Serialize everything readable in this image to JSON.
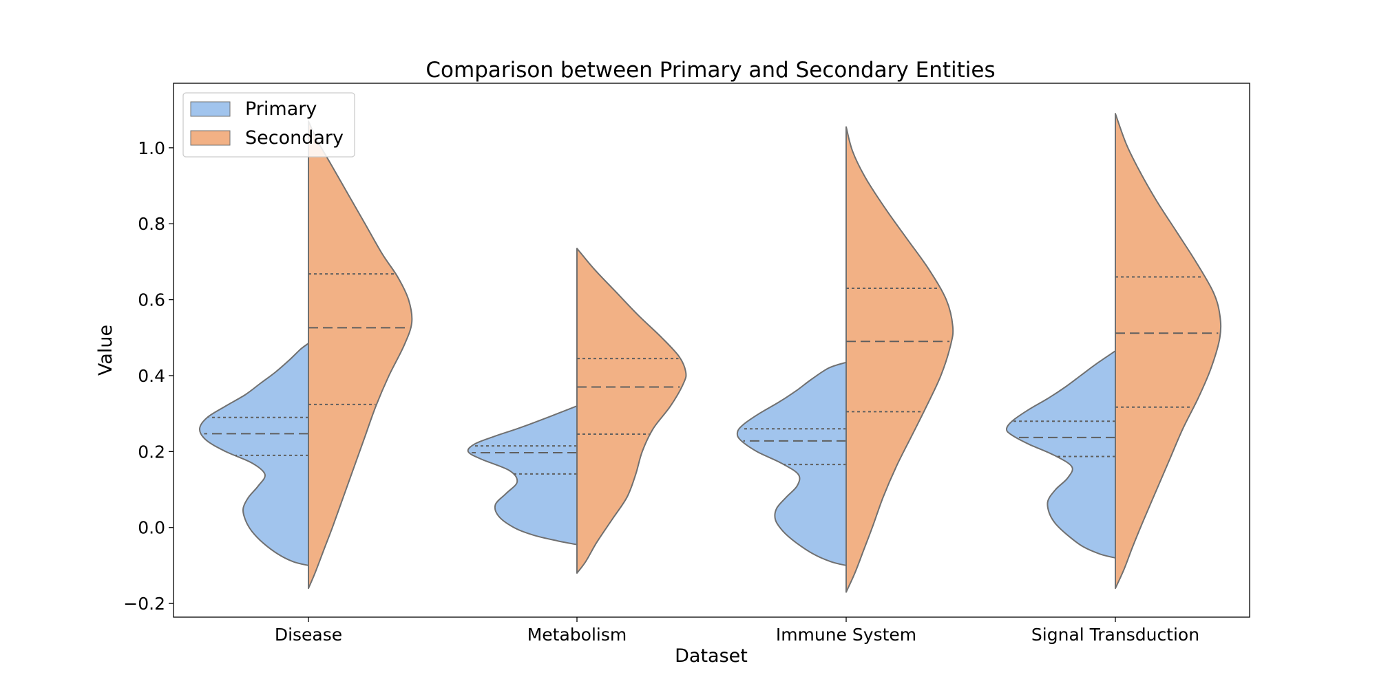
{
  "chart_data": {
    "type": "violin",
    "title": "Comparison between Primary and Secondary Entities",
    "xlabel": "Dataset",
    "ylabel": "Value",
    "categories": [
      "Disease",
      "Metabolism",
      "Immune System",
      "Signal Transduction"
    ],
    "ylim": [
      -0.236,
      1.17
    ],
    "yticks": [
      -0.2,
      0.0,
      0.2,
      0.4,
      0.6,
      0.8,
      1.0
    ],
    "yticklabels": [
      "−0.2",
      "0.0",
      "0.2",
      "0.4",
      "0.6",
      "0.8",
      "1.0"
    ],
    "legend": {
      "placement": "top-left",
      "entries": [
        {
          "label": "Primary",
          "color": "#a1c4ed"
        },
        {
          "label": "Secondary",
          "color": "#f2b185"
        }
      ]
    },
    "series": [
      {
        "name": "Primary",
        "color": "#a1c4ed",
        "side": "left",
        "violins": [
          {
            "min": -0.1,
            "max": 0.485,
            "q1": 0.19,
            "median": 0.247,
            "q3": 0.29,
            "profile": [
              [
                -0.1,
                0.0
              ],
              [
                -0.09,
                0.14
              ],
              [
                -0.07,
                0.28
              ],
              [
                -0.04,
                0.42
              ],
              [
                -0.01,
                0.52
              ],
              [
                0.02,
                0.58
              ],
              [
                0.05,
                0.6
              ],
              [
                0.08,
                0.55
              ],
              [
                0.11,
                0.46
              ],
              [
                0.14,
                0.4
              ],
              [
                0.17,
                0.52
              ],
              [
                0.2,
                0.76
              ],
              [
                0.23,
                0.94
              ],
              [
                0.26,
                1.0
              ],
              [
                0.29,
                0.93
              ],
              [
                0.32,
                0.76
              ],
              [
                0.35,
                0.58
              ],
              [
                0.38,
                0.44
              ],
              [
                0.41,
                0.3
              ],
              [
                0.44,
                0.18
              ],
              [
                0.47,
                0.07
              ],
              [
                0.485,
                0.0
              ]
            ]
          },
          {
            "min": -0.045,
            "max": 0.32,
            "q1": 0.141,
            "median": 0.197,
            "q3": 0.215,
            "profile": [
              [
                -0.045,
                0.0
              ],
              [
                -0.035,
                0.18
              ],
              [
                -0.02,
                0.4
              ],
              [
                0.0,
                0.58
              ],
              [
                0.03,
                0.72
              ],
              [
                0.06,
                0.75
              ],
              [
                0.09,
                0.65
              ],
              [
                0.12,
                0.55
              ],
              [
                0.15,
                0.62
              ],
              [
                0.18,
                0.88
              ],
              [
                0.2,
                1.0
              ],
              [
                0.22,
                0.94
              ],
              [
                0.24,
                0.76
              ],
              [
                0.26,
                0.55
              ],
              [
                0.28,
                0.36
              ],
              [
                0.3,
                0.18
              ],
              [
                0.32,
                0.0
              ]
            ]
          },
          {
            "min": -0.1,
            "max": 0.435,
            "q1": 0.166,
            "median": 0.228,
            "q3": 0.26,
            "profile": [
              [
                -0.1,
                0.0
              ],
              [
                -0.09,
                0.14
              ],
              [
                -0.07,
                0.3
              ],
              [
                -0.04,
                0.46
              ],
              [
                -0.01,
                0.58
              ],
              [
                0.02,
                0.65
              ],
              [
                0.05,
                0.64
              ],
              [
                0.08,
                0.55
              ],
              [
                0.11,
                0.45
              ],
              [
                0.14,
                0.44
              ],
              [
                0.17,
                0.6
              ],
              [
                0.2,
                0.82
              ],
              [
                0.23,
                0.97
              ],
              [
                0.25,
                1.0
              ],
              [
                0.27,
                0.95
              ],
              [
                0.3,
                0.8
              ],
              [
                0.33,
                0.62
              ],
              [
                0.36,
                0.46
              ],
              [
                0.39,
                0.32
              ],
              [
                0.42,
                0.16
              ],
              [
                0.435,
                0.0
              ]
            ]
          },
          {
            "min": -0.08,
            "max": 0.465,
            "q1": 0.187,
            "median": 0.237,
            "q3": 0.28,
            "profile": [
              [
                -0.08,
                0.0
              ],
              [
                -0.07,
                0.14
              ],
              [
                -0.05,
                0.3
              ],
              [
                -0.02,
                0.44
              ],
              [
                0.01,
                0.55
              ],
              [
                0.04,
                0.61
              ],
              [
                0.07,
                0.62
              ],
              [
                0.1,
                0.55
              ],
              [
                0.13,
                0.44
              ],
              [
                0.16,
                0.4
              ],
              [
                0.19,
                0.56
              ],
              [
                0.22,
                0.8
              ],
              [
                0.245,
                0.96
              ],
              [
                0.26,
                1.0
              ],
              [
                0.28,
                0.95
              ],
              [
                0.31,
                0.8
              ],
              [
                0.34,
                0.62
              ],
              [
                0.37,
                0.46
              ],
              [
                0.4,
                0.32
              ],
              [
                0.43,
                0.18
              ],
              [
                0.465,
                0.0
              ]
            ]
          }
        ]
      },
      {
        "name": "Secondary",
        "color": "#f2b185",
        "side": "right",
        "violins": [
          {
            "min": -0.16,
            "max": 1.07,
            "q1": 0.324,
            "median": 0.526,
            "q3": 0.668,
            "profile": [
              [
                -0.16,
                0.0
              ],
              [
                -0.12,
                0.06
              ],
              [
                -0.06,
                0.14
              ],
              [
                0.0,
                0.22
              ],
              [
                0.08,
                0.32
              ],
              [
                0.16,
                0.42
              ],
              [
                0.24,
                0.52
              ],
              [
                0.32,
                0.62
              ],
              [
                0.4,
                0.74
              ],
              [
                0.48,
                0.88
              ],
              [
                0.54,
                0.95
              ],
              [
                0.6,
                0.92
              ],
              [
                0.66,
                0.82
              ],
              [
                0.72,
                0.68
              ],
              [
                0.8,
                0.52
              ],
              [
                0.88,
                0.36
              ],
              [
                0.96,
                0.2
              ],
              [
                1.02,
                0.08
              ],
              [
                1.07,
                0.0
              ]
            ]
          },
          {
            "min": -0.12,
            "max": 0.735,
            "q1": 0.246,
            "median": 0.37,
            "q3": 0.445,
            "profile": [
              [
                -0.12,
                0.0
              ],
              [
                -0.09,
                0.08
              ],
              [
                -0.04,
                0.18
              ],
              [
                0.02,
                0.32
              ],
              [
                0.08,
                0.46
              ],
              [
                0.14,
                0.54
              ],
              [
                0.2,
                0.6
              ],
              [
                0.26,
                0.7
              ],
              [
                0.32,
                0.86
              ],
              [
                0.38,
                0.98
              ],
              [
                0.41,
                1.0
              ],
              [
                0.45,
                0.94
              ],
              [
                0.5,
                0.78
              ],
              [
                0.56,
                0.56
              ],
              [
                0.62,
                0.36
              ],
              [
                0.68,
                0.16
              ],
              [
                0.735,
                0.0
              ]
            ]
          },
          {
            "min": -0.17,
            "max": 1.055,
            "q1": 0.305,
            "median": 0.49,
            "q3": 0.63,
            "profile": [
              [
                -0.17,
                0.0
              ],
              [
                -0.12,
                0.08
              ],
              [
                -0.06,
                0.16
              ],
              [
                0.0,
                0.24
              ],
              [
                0.08,
                0.34
              ],
              [
                0.16,
                0.46
              ],
              [
                0.24,
                0.6
              ],
              [
                0.32,
                0.74
              ],
              [
                0.4,
                0.87
              ],
              [
                0.48,
                0.96
              ],
              [
                0.53,
                0.98
              ],
              [
                0.6,
                0.92
              ],
              [
                0.68,
                0.76
              ],
              [
                0.76,
                0.56
              ],
              [
                0.84,
                0.36
              ],
              [
                0.92,
                0.18
              ],
              [
                0.99,
                0.06
              ],
              [
                1.055,
                0.0
              ]
            ]
          },
          {
            "min": -0.16,
            "max": 1.09,
            "q1": 0.317,
            "median": 0.512,
            "q3": 0.66,
            "profile": [
              [
                -0.16,
                0.0
              ],
              [
                -0.11,
                0.08
              ],
              [
                -0.05,
                0.16
              ],
              [
                0.02,
                0.26
              ],
              [
                0.1,
                0.38
              ],
              [
                0.18,
                0.5
              ],
              [
                0.26,
                0.62
              ],
              [
                0.34,
                0.76
              ],
              [
                0.42,
                0.88
              ],
              [
                0.5,
                0.96
              ],
              [
                0.56,
                0.96
              ],
              [
                0.62,
                0.9
              ],
              [
                0.7,
                0.74
              ],
              [
                0.78,
                0.56
              ],
              [
                0.86,
                0.38
              ],
              [
                0.94,
                0.22
              ],
              [
                1.01,
                0.1
              ],
              [
                1.09,
                0.0
              ]
            ]
          }
        ]
      }
    ],
    "grid": false
  }
}
